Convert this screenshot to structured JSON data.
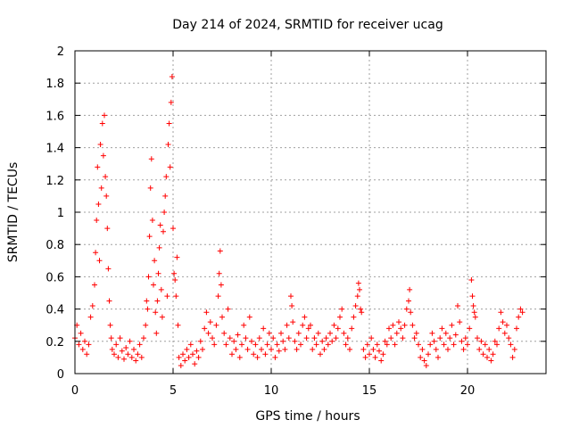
{
  "chart_data": {
    "type": "scatter",
    "title": "Day 214 of 2024, SRMTID for receiver ucag",
    "xlabel": "GPS time / hours",
    "ylabel": "SRMTID / TECUs",
    "xlim": [
      0,
      24
    ],
    "ylim": [
      0,
      2
    ],
    "x_ticks": [
      0,
      5,
      10,
      15,
      20
    ],
    "x_tick_labels": [
      "0",
      "5",
      "10",
      "15",
      "20"
    ],
    "y_ticks": [
      0,
      0.2,
      0.4,
      0.6,
      0.8,
      1,
      1.2,
      1.4,
      1.6,
      1.8,
      2
    ],
    "y_tick_labels": [
      "0",
      "0.2",
      "0.4",
      "0.6",
      "0.8",
      "1",
      "1.2",
      "1.4",
      "1.6",
      "1.8",
      "2"
    ],
    "grid": true,
    "marker": "+",
    "marker_color": "#ff0000",
    "series": [
      {
        "name": "SRMTID",
        "points": [
          [
            0.0,
            0.22
          ],
          [
            0.1,
            0.3
          ],
          [
            0.2,
            0.18
          ],
          [
            0.3,
            0.25
          ],
          [
            0.4,
            0.15
          ],
          [
            0.5,
            0.2
          ],
          [
            0.6,
            0.12
          ],
          [
            0.7,
            0.18
          ],
          [
            0.8,
            0.35
          ],
          [
            0.9,
            0.42
          ],
          [
            1.0,
            0.55
          ],
          [
            1.05,
            0.75
          ],
          [
            1.1,
            0.95
          ],
          [
            1.15,
            1.28
          ],
          [
            1.2,
            1.05
          ],
          [
            1.25,
            0.7
          ],
          [
            1.3,
            1.42
          ],
          [
            1.35,
            1.15
          ],
          [
            1.4,
            1.55
          ],
          [
            1.45,
            1.35
          ],
          [
            1.5,
            1.6
          ],
          [
            1.55,
            1.22
          ],
          [
            1.6,
            1.1
          ],
          [
            1.65,
            0.9
          ],
          [
            1.7,
            0.65
          ],
          [
            1.75,
            0.45
          ],
          [
            1.8,
            0.3
          ],
          [
            1.85,
            0.22
          ],
          [
            1.9,
            0.15
          ],
          [
            2.0,
            0.12
          ],
          [
            2.1,
            0.18
          ],
          [
            2.2,
            0.1
          ],
          [
            2.3,
            0.22
          ],
          [
            2.4,
            0.14
          ],
          [
            2.5,
            0.09
          ],
          [
            2.6,
            0.16
          ],
          [
            2.7,
            0.12
          ],
          [
            2.8,
            0.2
          ],
          [
            2.9,
            0.1
          ],
          [
            3.0,
            0.15
          ],
          [
            3.1,
            0.08
          ],
          [
            3.2,
            0.12
          ],
          [
            3.3,
            0.18
          ],
          [
            3.4,
            0.1
          ],
          [
            3.5,
            0.22
          ],
          [
            3.6,
            0.3
          ],
          [
            3.65,
            0.45
          ],
          [
            3.7,
            0.4
          ],
          [
            3.75,
            0.6
          ],
          [
            3.8,
            0.85
          ],
          [
            3.85,
            1.15
          ],
          [
            3.9,
            1.33
          ],
          [
            3.95,
            0.95
          ],
          [
            4.0,
            0.55
          ],
          [
            4.05,
            0.7
          ],
          [
            4.1,
            0.38
          ],
          [
            4.15,
            0.25
          ],
          [
            4.2,
            0.45
          ],
          [
            4.25,
            0.62
          ],
          [
            4.3,
            0.78
          ],
          [
            4.35,
            0.92
          ],
          [
            4.4,
            0.52
          ],
          [
            4.45,
            0.35
          ],
          [
            4.5,
            0.88
          ],
          [
            4.55,
            1.0
          ],
          [
            4.6,
            1.1
          ],
          [
            4.65,
            1.22
          ],
          [
            4.7,
            0.48
          ],
          [
            4.75,
            1.42
          ],
          [
            4.8,
            1.55
          ],
          [
            4.85,
            1.28
          ],
          [
            4.9,
            1.68
          ],
          [
            4.95,
            1.84
          ],
          [
            5.0,
            0.9
          ],
          [
            5.05,
            0.62
          ],
          [
            5.1,
            0.58
          ],
          [
            5.15,
            0.48
          ],
          [
            5.2,
            0.72
          ],
          [
            5.25,
            0.3
          ],
          [
            5.3,
            0.1
          ],
          [
            5.4,
            0.05
          ],
          [
            5.5,
            0.12
          ],
          [
            5.6,
            0.08
          ],
          [
            5.7,
            0.15
          ],
          [
            5.8,
            0.1
          ],
          [
            5.9,
            0.18
          ],
          [
            6.0,
            0.12
          ],
          [
            6.1,
            0.06
          ],
          [
            6.2,
            0.14
          ],
          [
            6.3,
            0.1
          ],
          [
            6.4,
            0.2
          ],
          [
            6.5,
            0.15
          ],
          [
            6.6,
            0.28
          ],
          [
            6.7,
            0.38
          ],
          [
            6.8,
            0.25
          ],
          [
            6.9,
            0.32
          ],
          [
            7.0,
            0.22
          ],
          [
            7.1,
            0.18
          ],
          [
            7.2,
            0.3
          ],
          [
            7.3,
            0.48
          ],
          [
            7.35,
            0.62
          ],
          [
            7.4,
            0.76
          ],
          [
            7.45,
            0.55
          ],
          [
            7.5,
            0.35
          ],
          [
            7.6,
            0.25
          ],
          [
            7.7,
            0.18
          ],
          [
            7.8,
            0.4
          ],
          [
            7.9,
            0.22
          ],
          [
            8.0,
            0.12
          ],
          [
            8.1,
            0.2
          ],
          [
            8.2,
            0.15
          ],
          [
            8.3,
            0.24
          ],
          [
            8.4,
            0.1
          ],
          [
            8.5,
            0.18
          ],
          [
            8.6,
            0.3
          ],
          [
            8.7,
            0.22
          ],
          [
            8.8,
            0.15
          ],
          [
            8.9,
            0.35
          ],
          [
            9.0,
            0.2
          ],
          [
            9.1,
            0.12
          ],
          [
            9.2,
            0.18
          ],
          [
            9.3,
            0.1
          ],
          [
            9.4,
            0.22
          ],
          [
            9.5,
            0.15
          ],
          [
            9.6,
            0.28
          ],
          [
            9.7,
            0.12
          ],
          [
            9.8,
            0.18
          ],
          [
            9.9,
            0.25
          ],
          [
            10.0,
            0.15
          ],
          [
            10.1,
            0.22
          ],
          [
            10.2,
            0.1
          ],
          [
            10.3,
            0.18
          ],
          [
            10.4,
            0.14
          ],
          [
            10.5,
            0.25
          ],
          [
            10.6,
            0.2
          ],
          [
            10.7,
            0.15
          ],
          [
            10.8,
            0.3
          ],
          [
            10.9,
            0.22
          ],
          [
            11.0,
            0.48
          ],
          [
            11.05,
            0.42
          ],
          [
            11.1,
            0.32
          ],
          [
            11.2,
            0.2
          ],
          [
            11.3,
            0.15
          ],
          [
            11.4,
            0.25
          ],
          [
            11.5,
            0.18
          ],
          [
            11.6,
            0.3
          ],
          [
            11.7,
            0.35
          ],
          [
            11.8,
            0.22
          ],
          [
            11.9,
            0.28
          ],
          [
            12.0,
            0.3
          ],
          [
            12.1,
            0.15
          ],
          [
            12.2,
            0.22
          ],
          [
            12.3,
            0.18
          ],
          [
            12.4,
            0.25
          ],
          [
            12.5,
            0.12
          ],
          [
            12.6,
            0.2
          ],
          [
            12.7,
            0.15
          ],
          [
            12.8,
            0.22
          ],
          [
            12.9,
            0.18
          ],
          [
            13.0,
            0.25
          ],
          [
            13.1,
            0.2
          ],
          [
            13.2,
            0.3
          ],
          [
            13.3,
            0.22
          ],
          [
            13.4,
            0.28
          ],
          [
            13.5,
            0.35
          ],
          [
            13.6,
            0.4
          ],
          [
            13.7,
            0.25
          ],
          [
            13.8,
            0.18
          ],
          [
            13.9,
            0.22
          ],
          [
            14.0,
            0.15
          ],
          [
            14.1,
            0.28
          ],
          [
            14.2,
            0.35
          ],
          [
            14.3,
            0.42
          ],
          [
            14.4,
            0.48
          ],
          [
            14.45,
            0.56
          ],
          [
            14.5,
            0.52
          ],
          [
            14.55,
            0.4
          ],
          [
            14.6,
            0.38
          ],
          [
            14.7,
            0.15
          ],
          [
            14.8,
            0.1
          ],
          [
            14.9,
            0.18
          ],
          [
            15.0,
            0.12
          ],
          [
            15.1,
            0.22
          ],
          [
            15.2,
            0.15
          ],
          [
            15.3,
            0.1
          ],
          [
            15.4,
            0.18
          ],
          [
            15.5,
            0.14
          ],
          [
            15.6,
            0.08
          ],
          [
            15.7,
            0.12
          ],
          [
            15.8,
            0.2
          ],
          [
            15.9,
            0.18
          ],
          [
            16.0,
            0.28
          ],
          [
            16.1,
            0.22
          ],
          [
            16.2,
            0.3
          ],
          [
            16.3,
            0.18
          ],
          [
            16.4,
            0.25
          ],
          [
            16.5,
            0.32
          ],
          [
            16.6,
            0.28
          ],
          [
            16.7,
            0.22
          ],
          [
            16.8,
            0.3
          ],
          [
            16.9,
            0.4
          ],
          [
            17.0,
            0.45
          ],
          [
            17.05,
            0.52
          ],
          [
            17.1,
            0.38
          ],
          [
            17.2,
            0.3
          ],
          [
            17.3,
            0.22
          ],
          [
            17.4,
            0.25
          ],
          [
            17.5,
            0.18
          ],
          [
            17.6,
            0.1
          ],
          [
            17.7,
            0.15
          ],
          [
            17.8,
            0.08
          ],
          [
            17.9,
            0.05
          ],
          [
            18.0,
            0.12
          ],
          [
            18.1,
            0.18
          ],
          [
            18.2,
            0.25
          ],
          [
            18.3,
            0.2
          ],
          [
            18.4,
            0.15
          ],
          [
            18.5,
            0.1
          ],
          [
            18.6,
            0.22
          ],
          [
            18.7,
            0.28
          ],
          [
            18.8,
            0.18
          ],
          [
            18.9,
            0.25
          ],
          [
            19.0,
            0.15
          ],
          [
            19.1,
            0.22
          ],
          [
            19.2,
            0.3
          ],
          [
            19.3,
            0.18
          ],
          [
            19.4,
            0.24
          ],
          [
            19.5,
            0.42
          ],
          [
            19.6,
            0.32
          ],
          [
            19.7,
            0.2
          ],
          [
            19.8,
            0.15
          ],
          [
            19.9,
            0.22
          ],
          [
            20.0,
            0.18
          ],
          [
            20.1,
            0.28
          ],
          [
            20.2,
            0.58
          ],
          [
            20.25,
            0.48
          ],
          [
            20.3,
            0.42
          ],
          [
            20.35,
            0.38
          ],
          [
            20.4,
            0.35
          ],
          [
            20.5,
            0.22
          ],
          [
            20.6,
            0.15
          ],
          [
            20.7,
            0.2
          ],
          [
            20.8,
            0.12
          ],
          [
            20.9,
            0.18
          ],
          [
            21.0,
            0.1
          ],
          [
            21.1,
            0.15
          ],
          [
            21.2,
            0.08
          ],
          [
            21.3,
            0.12
          ],
          [
            21.4,
            0.2
          ],
          [
            21.5,
            0.18
          ],
          [
            21.6,
            0.28
          ],
          [
            21.7,
            0.38
          ],
          [
            21.8,
            0.32
          ],
          [
            21.9,
            0.25
          ],
          [
            22.0,
            0.3
          ],
          [
            22.1,
            0.22
          ],
          [
            22.2,
            0.18
          ],
          [
            22.3,
            0.1
          ],
          [
            22.4,
            0.15
          ],
          [
            22.5,
            0.28
          ],
          [
            22.6,
            0.35
          ],
          [
            22.7,
            0.4
          ],
          [
            22.8,
            0.38
          ]
        ]
      }
    ]
  }
}
